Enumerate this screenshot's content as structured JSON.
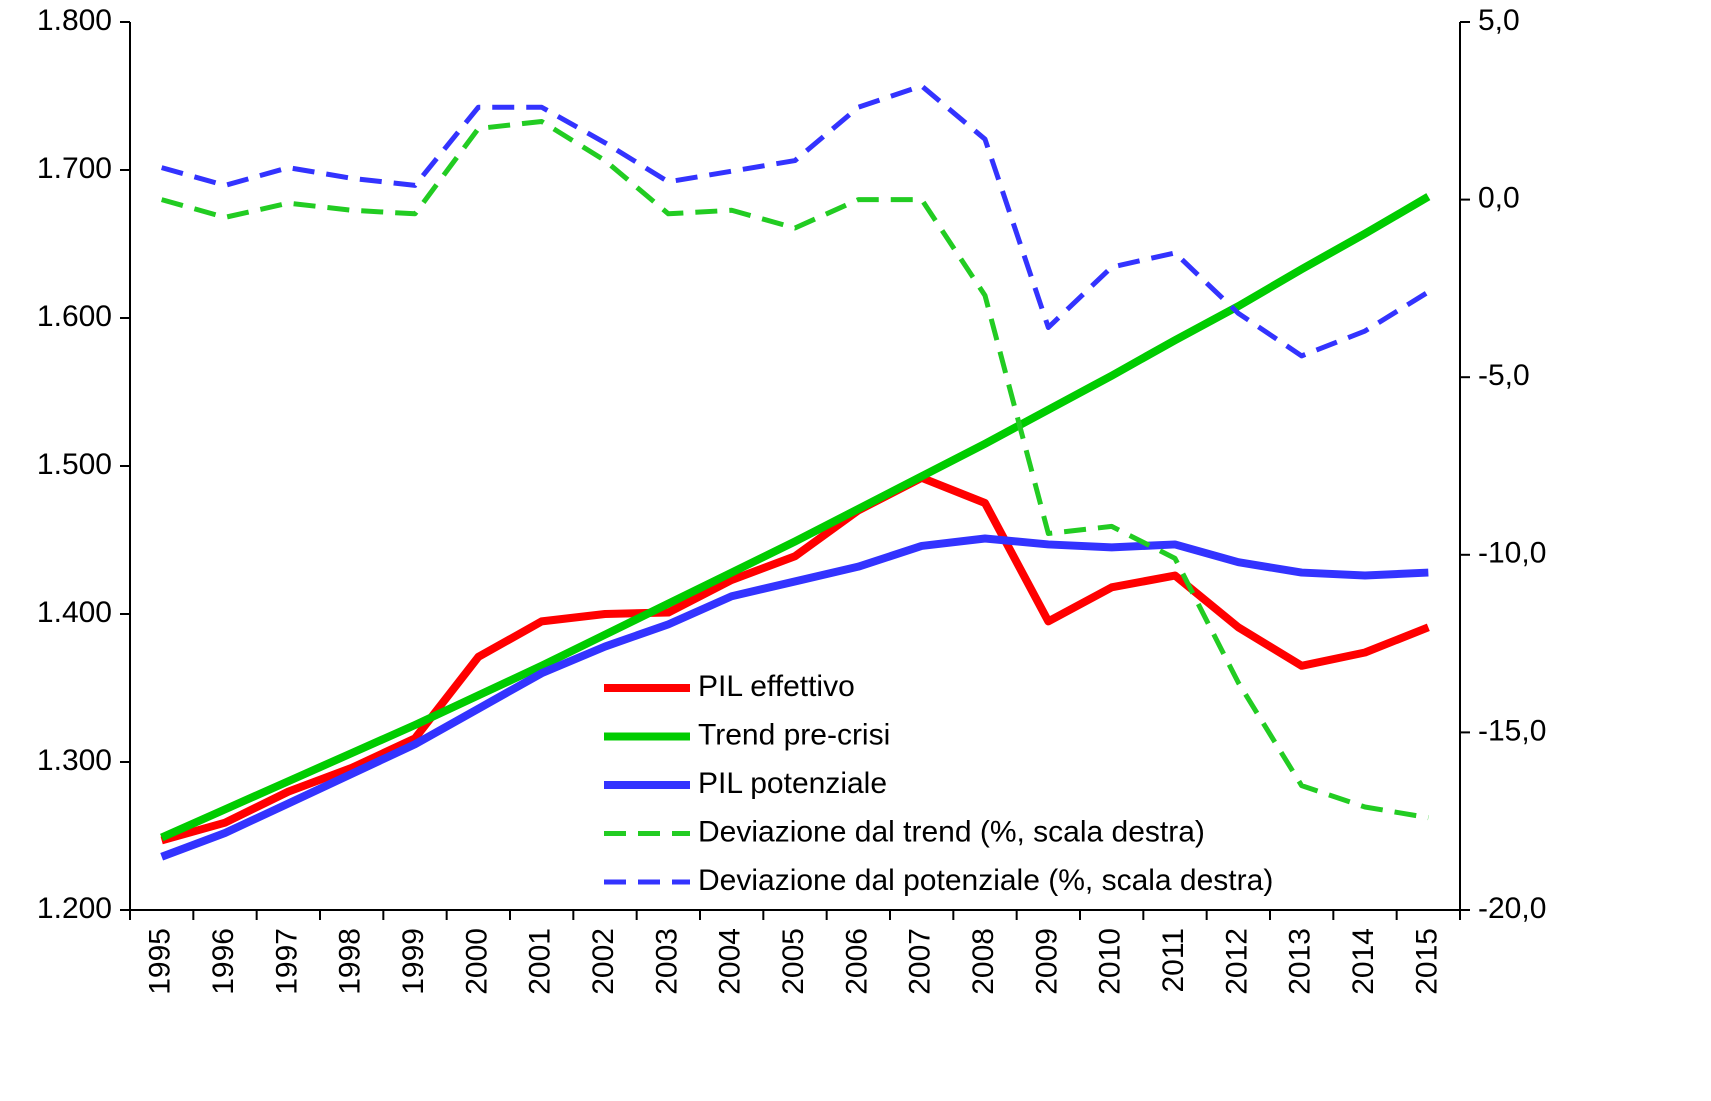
{
  "chart_data": {
    "type": "line",
    "categories": [
      "1995",
      "1996",
      "1997",
      "1998",
      "1999",
      "2000",
      "2001",
      "2002",
      "2003",
      "2004",
      "2005",
      "2006",
      "2007",
      "2008",
      "2009",
      "2010",
      "2011",
      "2012",
      "2013",
      "2014",
      "2015"
    ],
    "ylim": [
      1200,
      1800
    ],
    "yticks": [
      {
        "value": 1200,
        "label": "1.200"
      },
      {
        "value": 1300,
        "label": "1.300"
      },
      {
        "value": 1400,
        "label": "1.400"
      },
      {
        "value": 1500,
        "label": "1.500"
      },
      {
        "value": 1600,
        "label": "1.600"
      },
      {
        "value": 1700,
        "label": "1.700"
      },
      {
        "value": 1800,
        "label": "1.800"
      }
    ],
    "y2lim": [
      -20,
      5
    ],
    "y2ticks": [
      {
        "value": -20,
        "label": "-20,0"
      },
      {
        "value": -15,
        "label": "-15,0"
      },
      {
        "value": -10,
        "label": "-10,0"
      },
      {
        "value": -5,
        "label": "-5,0"
      },
      {
        "value": 0,
        "label": "0,0"
      },
      {
        "value": 5,
        "label": "5,0"
      }
    ],
    "grid": false,
    "series": [
      {
        "name": "PIL effettivo",
        "color": "#ff0000",
        "line_style": "solid",
        "values": [
          1247,
          1259,
          1280,
          1296,
          1316,
          1371,
          1395,
          1400,
          1401,
          1423,
          1439,
          1470,
          1492,
          1475,
          1395,
          1418,
          1426,
          1391,
          1365,
          1374,
          1391
        ]
      },
      {
        "name": "Trend pre-crisi",
        "color": "#00cc00",
        "line_style": "solid",
        "values": [
          1249,
          1268,
          1287,
          1306,
          1325,
          1345,
          1365,
          1386,
          1407,
          1428,
          1449,
          1471,
          1493,
          1515,
          1538,
          1561,
          1585,
          1608,
          1633,
          1657,
          1682
        ]
      },
      {
        "name": "PIL potenziale",
        "color": "#3333ff",
        "line_style": "solid",
        "values": [
          1236,
          1252,
          1272,
          1292,
          1312,
          1336,
          1360,
          1378,
          1393,
          1412,
          1422,
          1432,
          1446,
          1451,
          1447,
          1445,
          1447,
          1435,
          1428,
          1426,
          1428
        ]
      },
      {
        "name": "Deviazione dal trend (%, scala destra)",
        "color": "#22cc22",
        "line_style": "dashed",
        "axis": "y2",
        "values": [
          0.0,
          -0.5,
          -0.1,
          -0.3,
          -0.4,
          2.0,
          2.2,
          1.1,
          -0.4,
          -0.3,
          -0.8,
          0.0,
          0.0,
          -2.7,
          -9.4,
          -9.2,
          -10.1,
          -13.6,
          -16.5,
          -17.1,
          -17.4
        ]
      },
      {
        "name": "Deviazione dal potenziale (%, scala destra)",
        "color": "#3333ff",
        "line_style": "dashed",
        "axis": "y2",
        "values": [
          0.9,
          0.4,
          0.9,
          0.6,
          0.4,
          2.6,
          2.6,
          1.6,
          0.5,
          0.8,
          1.1,
          2.6,
          3.2,
          1.7,
          -3.6,
          -1.9,
          -1.5,
          -3.2,
          -4.4,
          -3.7,
          -2.6
        ]
      }
    ]
  }
}
